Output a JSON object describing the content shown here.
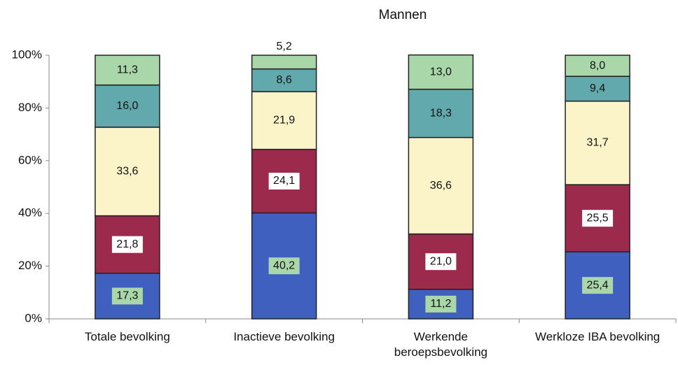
{
  "chart_data": {
    "type": "stacked-bar",
    "title": "Mannen",
    "categories": [
      "Totale bevolking",
      "Inactieve bevolking",
      "Werkende beroepsbevolking",
      "Werkloze IBA bevolking"
    ],
    "series": [
      {
        "color": "#4060c0",
        "values": [
          17.3,
          40.2,
          11.2,
          25.4
        ],
        "value_labels": [
          "17,3",
          "40,2",
          "11,2",
          "25,4"
        ]
      },
      {
        "color": "#9b2a4c",
        "values": [
          21.8,
          24.1,
          21.0,
          25.5
        ],
        "value_labels": [
          "21,8",
          "24,1",
          "21,0",
          "25,5"
        ]
      },
      {
        "color": "#fbf4c8",
        "values": [
          33.6,
          21.9,
          36.6,
          31.7
        ],
        "value_labels": [
          "33,6",
          "21,9",
          "36,6",
          "31,7"
        ]
      },
      {
        "color": "#62a9ad",
        "values": [
          16.0,
          8.6,
          18.3,
          9.4
        ],
        "value_labels": [
          "16,0",
          "8,6",
          "18,3",
          "9,4"
        ]
      },
      {
        "color": "#a9d7a9",
        "values": [
          11.3,
          5.2,
          13.0,
          8.0
        ],
        "value_labels": [
          "11,3",
          "5,2",
          "13,0",
          "8,0"
        ]
      }
    ],
    "ylim": [
      0,
      100
    ],
    "yticks": [
      {
        "value": 0,
        "label": "0%"
      },
      {
        "value": 20,
        "label": "20%"
      },
      {
        "value": 40,
        "label": "40%"
      },
      {
        "value": 60,
        "label": "60%"
      },
      {
        "value": 80,
        "label": "80%"
      },
      {
        "value": 100,
        "label": "100%"
      }
    ]
  }
}
